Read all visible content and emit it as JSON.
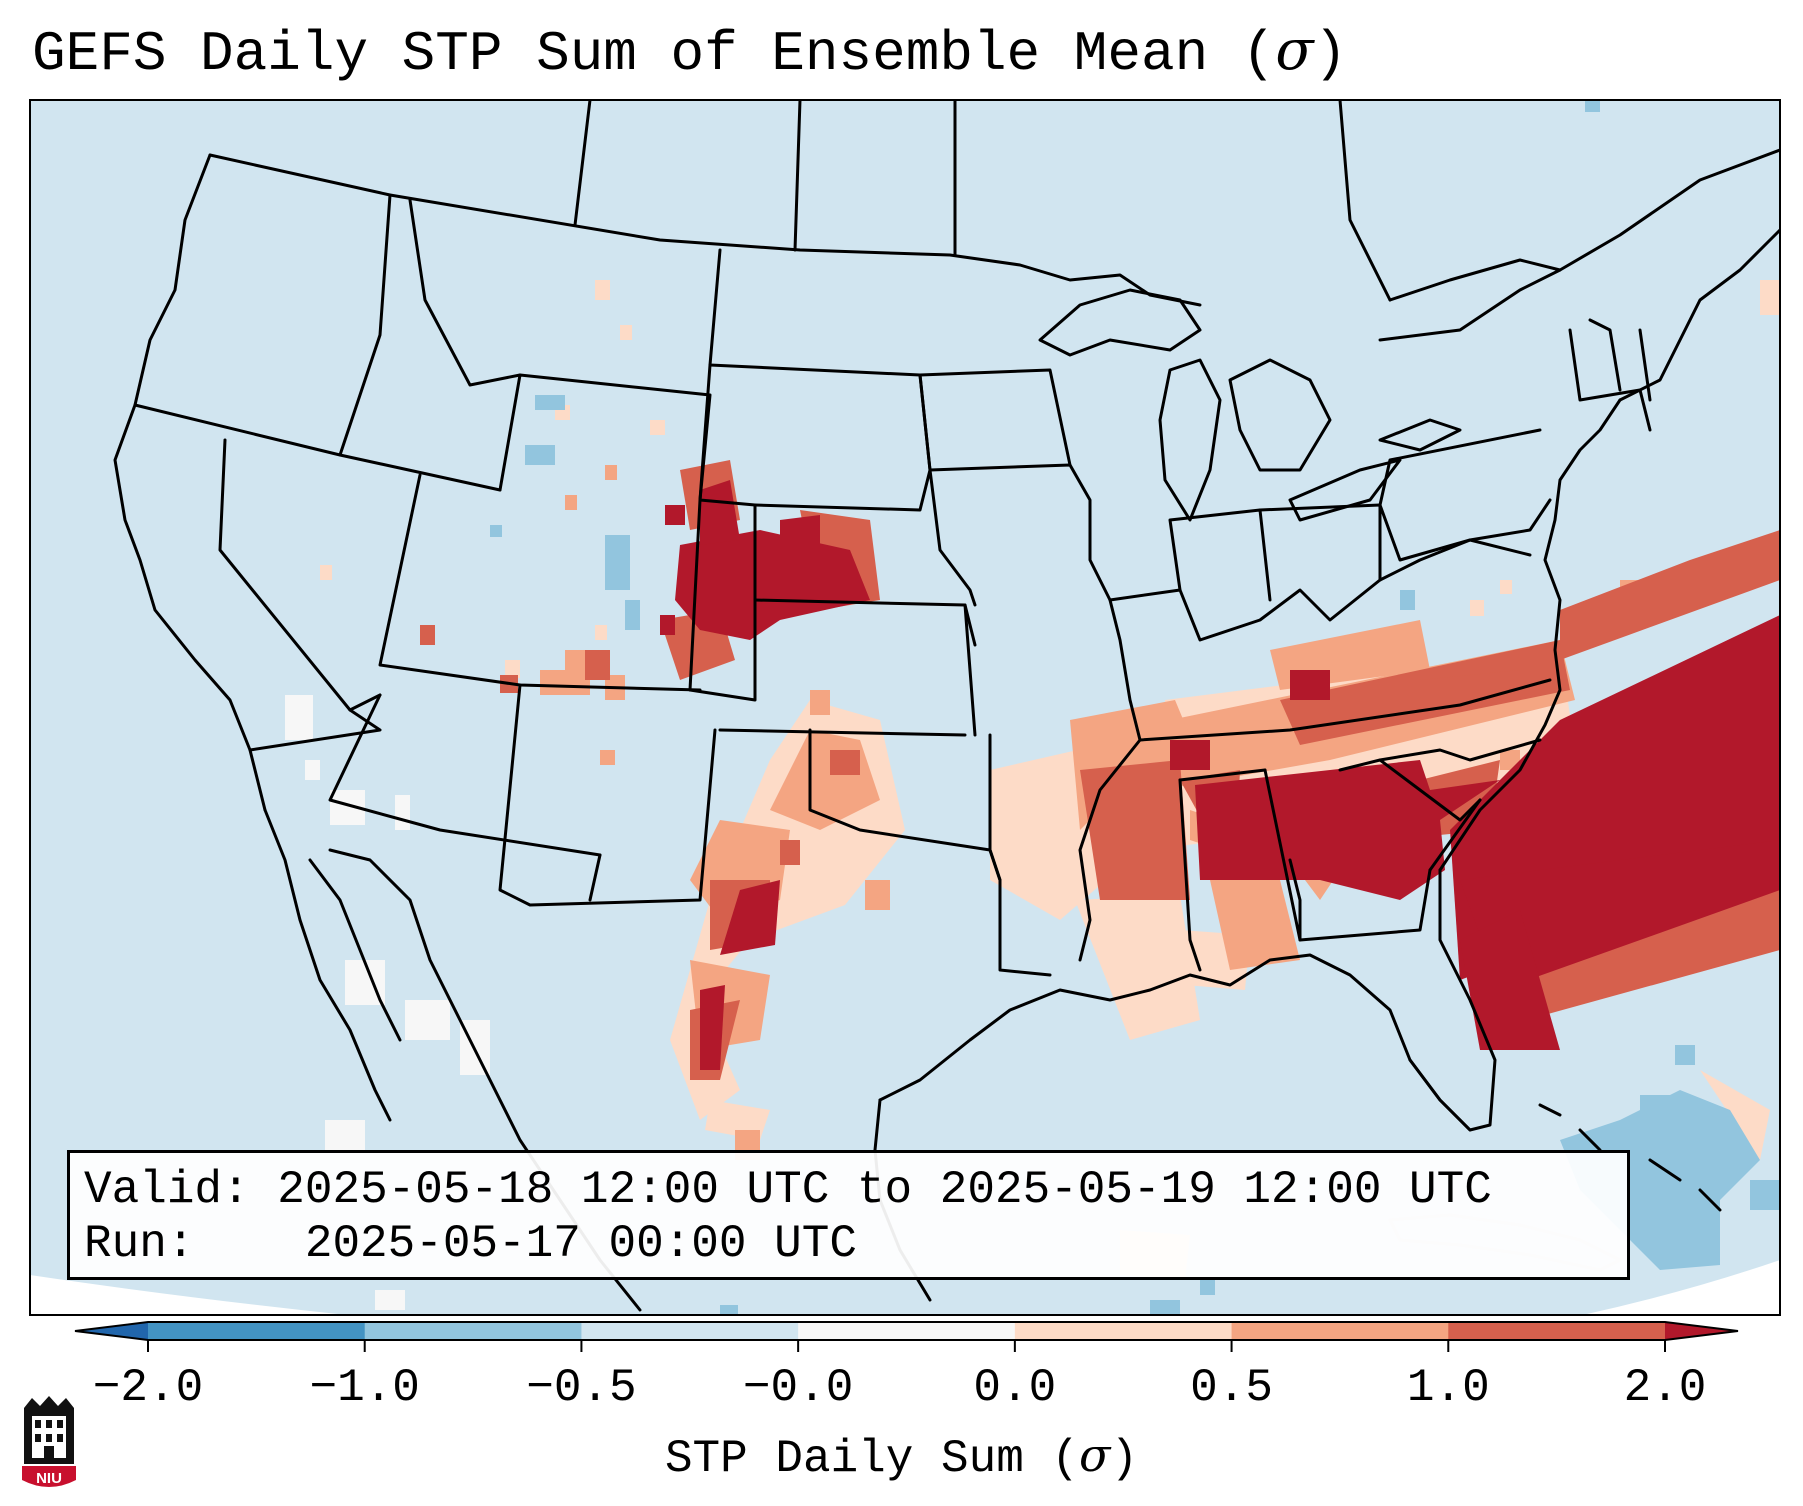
{
  "title": {
    "text": "GEFS Daily STP Sum of Ensemble Mean (",
    "sigma": "σ",
    "close": ")"
  },
  "info": {
    "valid_label": "Valid:",
    "valid_value": "2025-05-18 12:00 UTC to 2025-05-19 12:00 UTC",
    "run_label": "Run:",
    "run_value": "2025-05-17 00:00 UTC"
  },
  "colorbar": {
    "ticks": [
      "−2.0",
      "−1.0",
      "−0.5",
      "−0.0",
      "0.0",
      "0.5",
      "1.0",
      "2.0"
    ],
    "label_text": "STP Daily Sum (",
    "label_sigma": "σ",
    "label_close": ")",
    "colors": {
      "extend_low": "#2166ac",
      "bins": [
        "#4393c3",
        "#92c5de",
        "#d1e5f0",
        "#f7f7f7",
        "#fddbc7",
        "#f4a582",
        "#d6604d"
      ],
      "extend_high": "#b2182b"
    }
  },
  "map": {
    "background_color": "#d1e5f0",
    "regions": [
      {
        "name": "southeast-max",
        "level": "high"
      },
      {
        "name": "atlantic-max",
        "level": "high"
      },
      {
        "name": "nebraska-max",
        "level": "high"
      },
      {
        "name": "texas-max",
        "level": "high"
      },
      {
        "name": "southeast-moderate",
        "level": "moderate"
      },
      {
        "name": "southern-plains-low",
        "level": "low"
      },
      {
        "name": "bahamas-negative",
        "level": "negative"
      }
    ]
  },
  "logo": {
    "text": "NIU",
    "color": "#c8102e"
  }
}
